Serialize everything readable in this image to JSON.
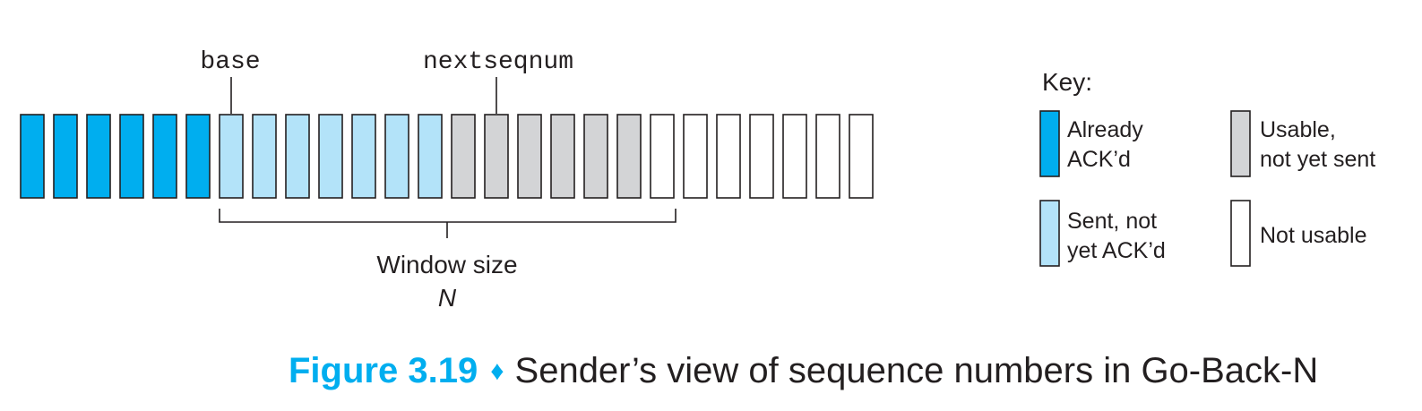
{
  "labels": {
    "base": "base",
    "nextseqnum": "nextseqnum",
    "window_size": "Window size",
    "window_N": "N"
  },
  "sequence": [
    "acked",
    "acked",
    "acked",
    "acked",
    "acked",
    "acked",
    "sent",
    "sent",
    "sent",
    "sent",
    "sent",
    "sent",
    "sent",
    "usable",
    "usable",
    "usable",
    "usable",
    "usable",
    "usable",
    "unusable",
    "unusable",
    "unusable",
    "unusable",
    "unusable",
    "unusable",
    "unusable"
  ],
  "base_index": 6,
  "nextseqnum_index": 13,
  "window_start_index": 6,
  "window_end_index": 19,
  "colors": {
    "acked": "#00aeef",
    "sent": "#b3e3f9",
    "usable": "#d3d4d6",
    "unusable": "#ffffff",
    "stroke": "#231f20",
    "accent": "#00aeef"
  },
  "key": {
    "title": "Key:",
    "items": [
      {
        "type": "acked",
        "line1": "Already",
        "line2": "ACK’d"
      },
      {
        "type": "usable",
        "line1": "Usable,",
        "line2": "not yet sent"
      },
      {
        "type": "sent",
        "line1": "Sent, not",
        "line2": "yet ACK’d"
      },
      {
        "type": "unusable",
        "line1": "Not usable",
        "line2": ""
      }
    ]
  },
  "caption": {
    "label": "Figure 3.19",
    "separator": "♦",
    "title": "Sender’s view of sequence numbers in Go-Back-N"
  }
}
